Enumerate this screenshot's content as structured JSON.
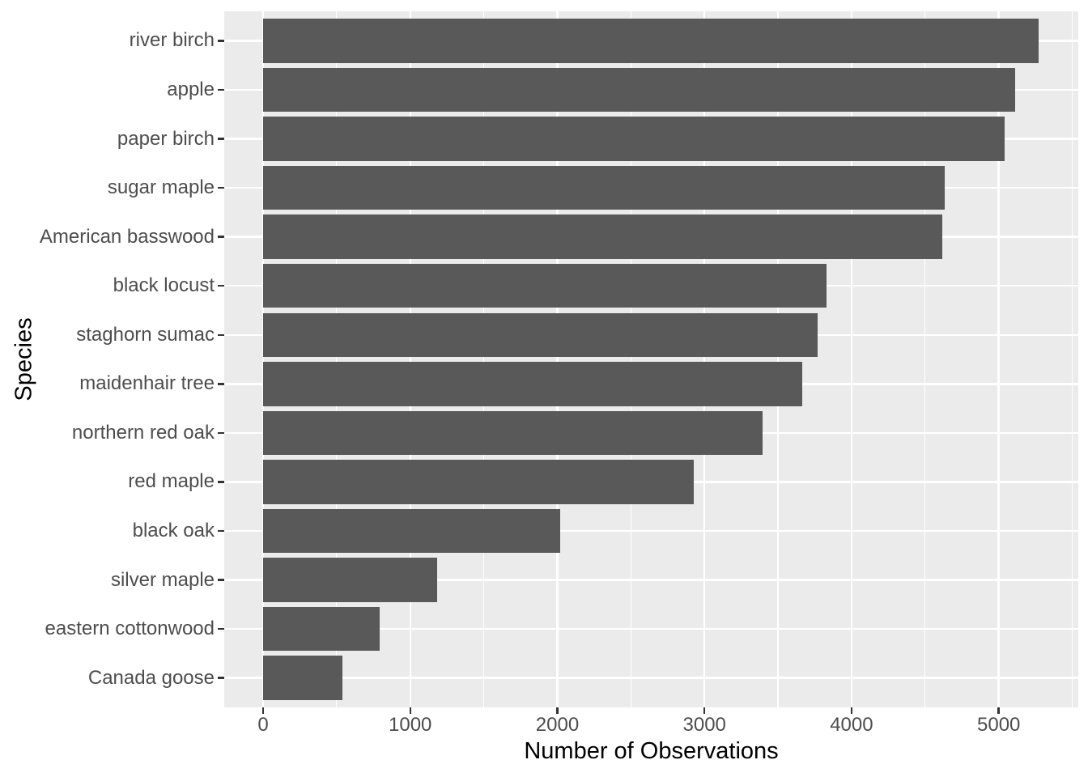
{
  "chart_data": {
    "type": "bar",
    "orientation": "horizontal",
    "title": "",
    "xlabel": "Number of Observations",
    "ylabel": "Species",
    "categories": [
      "river birch",
      "apple",
      "paper birch",
      "sugar maple",
      "American basswood",
      "black locust",
      "staghorn sumac",
      "maidenhair tree",
      "northern red oak",
      "red maple",
      "black oak",
      "silver maple",
      "eastern cottonwood",
      "Canada goose"
    ],
    "values": [
      5270,
      5110,
      5040,
      4630,
      4615,
      3830,
      3770,
      3665,
      3395,
      2925,
      2020,
      1185,
      790,
      540
    ],
    "x_tick_labels": [
      "0",
      "1000",
      "2000",
      "3000",
      "4000",
      "5000"
    ],
    "x_ticks": [
      0,
      1000,
      2000,
      3000,
      4000,
      5000
    ],
    "x_minor_ticks": [
      500,
      1500,
      2500,
      3500,
      4500,
      5500
    ],
    "x_domain": [
      -264,
      5541
    ],
    "bar_width_fraction": 0.9,
    "grid": "white major and minor gridlines on gray panel",
    "legend": "none",
    "colors": {
      "bar": "#595959",
      "panel_background": "#EBEBEB",
      "gridline": "#FFFFFF",
      "tick_mark": "#333333",
      "tick_label": "#4D4D4D",
      "axis_title": "#000000",
      "page_background": "#FFFFFF"
    }
  }
}
